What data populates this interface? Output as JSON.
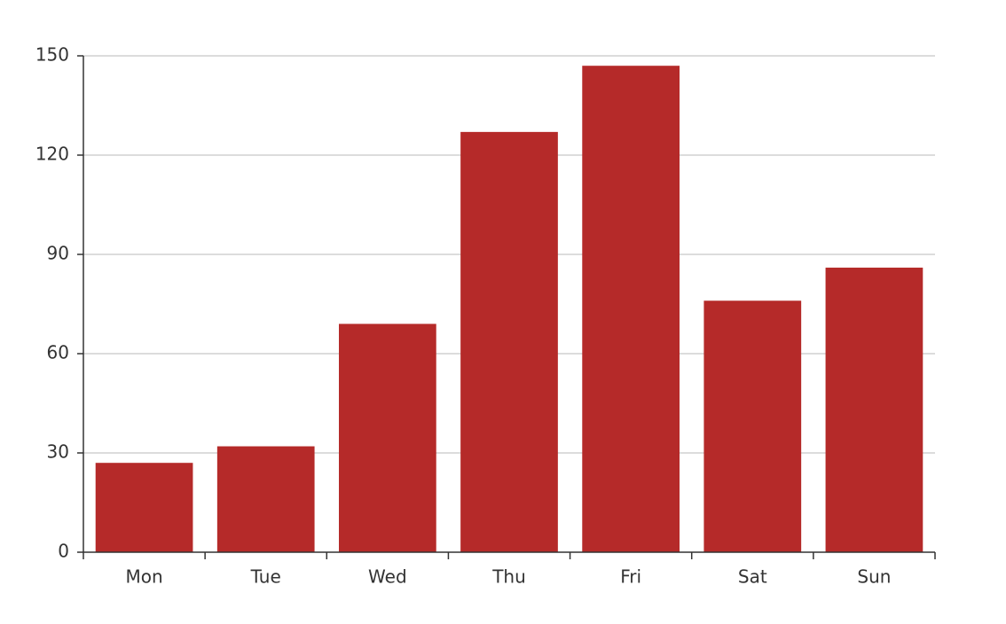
{
  "chart_data": {
    "type": "bar",
    "categories": [
      "Mon",
      "Tue",
      "Wed",
      "Thu",
      "Fri",
      "Sat",
      "Sun"
    ],
    "values": [
      27,
      32,
      69,
      127,
      147,
      76,
      86
    ],
    "color": "#b52a29",
    "ylim": [
      0,
      150
    ],
    "yticks": [
      0,
      30,
      60,
      90,
      120,
      150
    ],
    "grid": true
  }
}
